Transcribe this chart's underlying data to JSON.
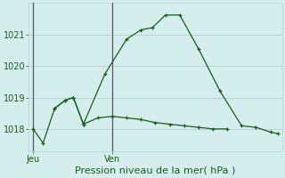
{
  "xlabel": "Pression niveau de la mer( hPa )",
  "background_color": "#d4eeed",
  "grid_color": "#b8d4d0",
  "line_color": "#1a5c1a",
  "vline_color": "#555566",
  "y_ticks": [
    1018,
    1019,
    1020,
    1021
  ],
  "ylim": [
    1017.3,
    1022.0
  ],
  "xlim": [
    -0.3,
    17.3
  ],
  "x_tick_labels": [
    "Jeu",
    "Ven"
  ],
  "x_tick_positions": [
    0,
    5.5
  ],
  "vline_x": [
    0,
    5.5
  ],
  "series1_x": [
    0,
    0.7,
    1.5,
    2.2,
    2.8,
    3.5,
    5.0,
    6.5,
    7.5,
    8.3,
    9.2,
    10.2,
    11.5,
    13.0,
    14.5,
    15.5,
    16.5,
    17.0
  ],
  "series1_y": [
    1018.0,
    1017.55,
    1018.65,
    1018.9,
    1019.0,
    1018.15,
    1019.75,
    1020.85,
    1021.15,
    1021.22,
    1021.62,
    1021.62,
    1020.55,
    1019.2,
    1018.1,
    1018.05,
    1017.9,
    1017.85
  ],
  "series2_x": [
    1.5,
    2.2,
    2.8,
    3.5,
    4.5,
    5.5,
    6.5,
    7.5,
    8.5,
    9.5,
    10.5,
    11.5,
    12.5,
    13.5
  ],
  "series2_y": [
    1018.65,
    1018.9,
    1019.0,
    1018.15,
    1018.35,
    1018.4,
    1018.35,
    1018.3,
    1018.2,
    1018.15,
    1018.1,
    1018.05,
    1018.0,
    1018.0
  ],
  "ylabel_fontsize": 7,
  "xlabel_fontsize": 8,
  "tick_fontsize": 7
}
